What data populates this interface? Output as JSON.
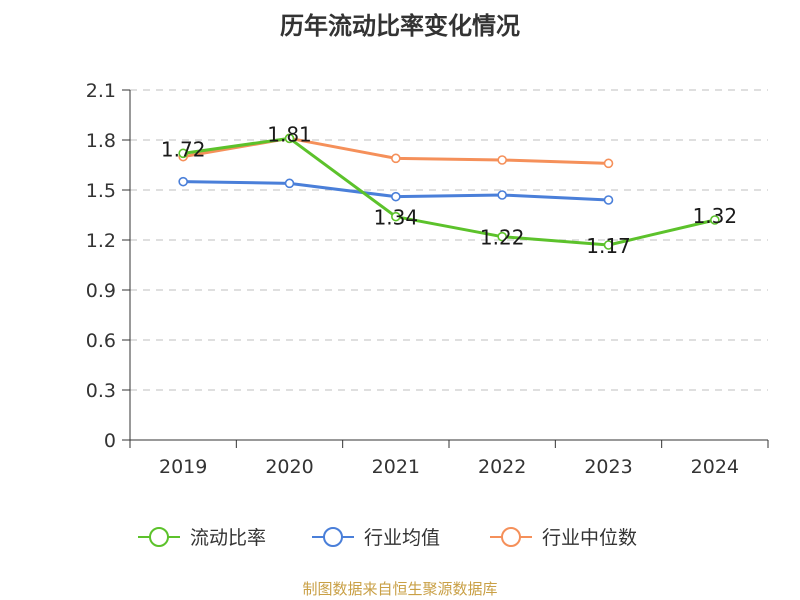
{
  "chart_data": {
    "type": "line",
    "title": "历年流动比率变化情况",
    "categories": [
      "2019",
      "2020",
      "2021",
      "2022",
      "2023",
      "2024"
    ],
    "ylim": [
      0,
      2.1
    ],
    "yticks": [
      "0",
      "0.3",
      "0.6",
      "0.9",
      "1.2",
      "1.5",
      "1.8",
      "2.1"
    ],
    "grid": true,
    "legend_position": "bottom",
    "series": [
      {
        "name": "流动比率",
        "color": "#5cc22b",
        "values": [
          1.72,
          1.81,
          1.34,
          1.22,
          1.17,
          1.32
        ],
        "labels": [
          "1.72",
          "1.81",
          "1.34",
          "1.22",
          "1.17",
          "1.32"
        ]
      },
      {
        "name": "行业均值",
        "color": "#4a7fd9",
        "values": [
          1.55,
          1.54,
          1.46,
          1.47,
          1.44,
          null
        ]
      },
      {
        "name": "行业中位数",
        "color": "#f5905a",
        "values": [
          1.7,
          1.81,
          1.69,
          1.68,
          1.66,
          null
        ]
      }
    ]
  },
  "source_text": "制图数据来自恒生聚源数据库"
}
